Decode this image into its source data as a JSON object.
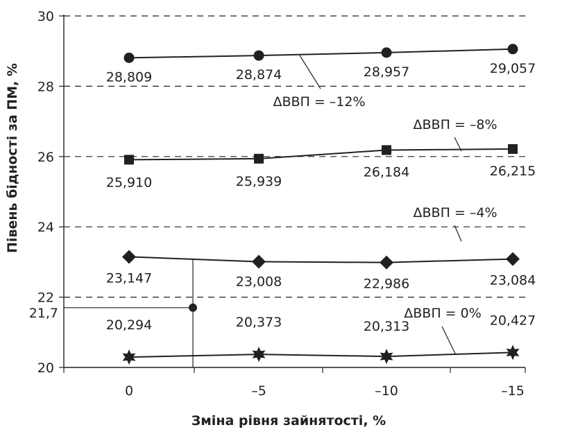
{
  "chart_data": {
    "type": "line",
    "xlabel": "Зміна рівня зайнятості, %",
    "ylabel": "Півень бідності за ПМ, %",
    "categories": [
      "0",
      "–5",
      "–10",
      "–15"
    ],
    "ylim": [
      20,
      30
    ],
    "yticks": [
      "20",
      "22",
      "24",
      "26",
      "28",
      "30"
    ],
    "grid": "horizontal dashed",
    "series": [
      {
        "name": "ΔВВП = –12%",
        "marker": "circle",
        "values": [
          28.809,
          28.874,
          28.957,
          29.057
        ],
        "labels": [
          "28,809",
          "28,874",
          "28,957",
          "29,057"
        ]
      },
      {
        "name": "ΔВВП = –8%",
        "marker": "square",
        "values": [
          25.91,
          25.939,
          26.184,
          26.215
        ],
        "labels": [
          "25,910",
          "25,939",
          "26,184",
          "26,215"
        ]
      },
      {
        "name": "ΔВВП = –4%",
        "marker": "diamond",
        "values": [
          23.147,
          23.008,
          22.986,
          23.084
        ],
        "labels": [
          "23,147",
          "23,008",
          "22,986",
          "23,084"
        ]
      },
      {
        "name": "ΔВВП = 0%",
        "marker": "star",
        "values": [
          20.294,
          20.373,
          20.313,
          20.427
        ],
        "labels": [
          "20,294",
          "20,373",
          "20,313",
          "20,427"
        ]
      }
    ],
    "annotation": {
      "label": "21,7",
      "y": 21.7
    },
    "colors": {
      "line": "#231f20",
      "grid": "#231f20",
      "background": "#ffffff"
    }
  }
}
